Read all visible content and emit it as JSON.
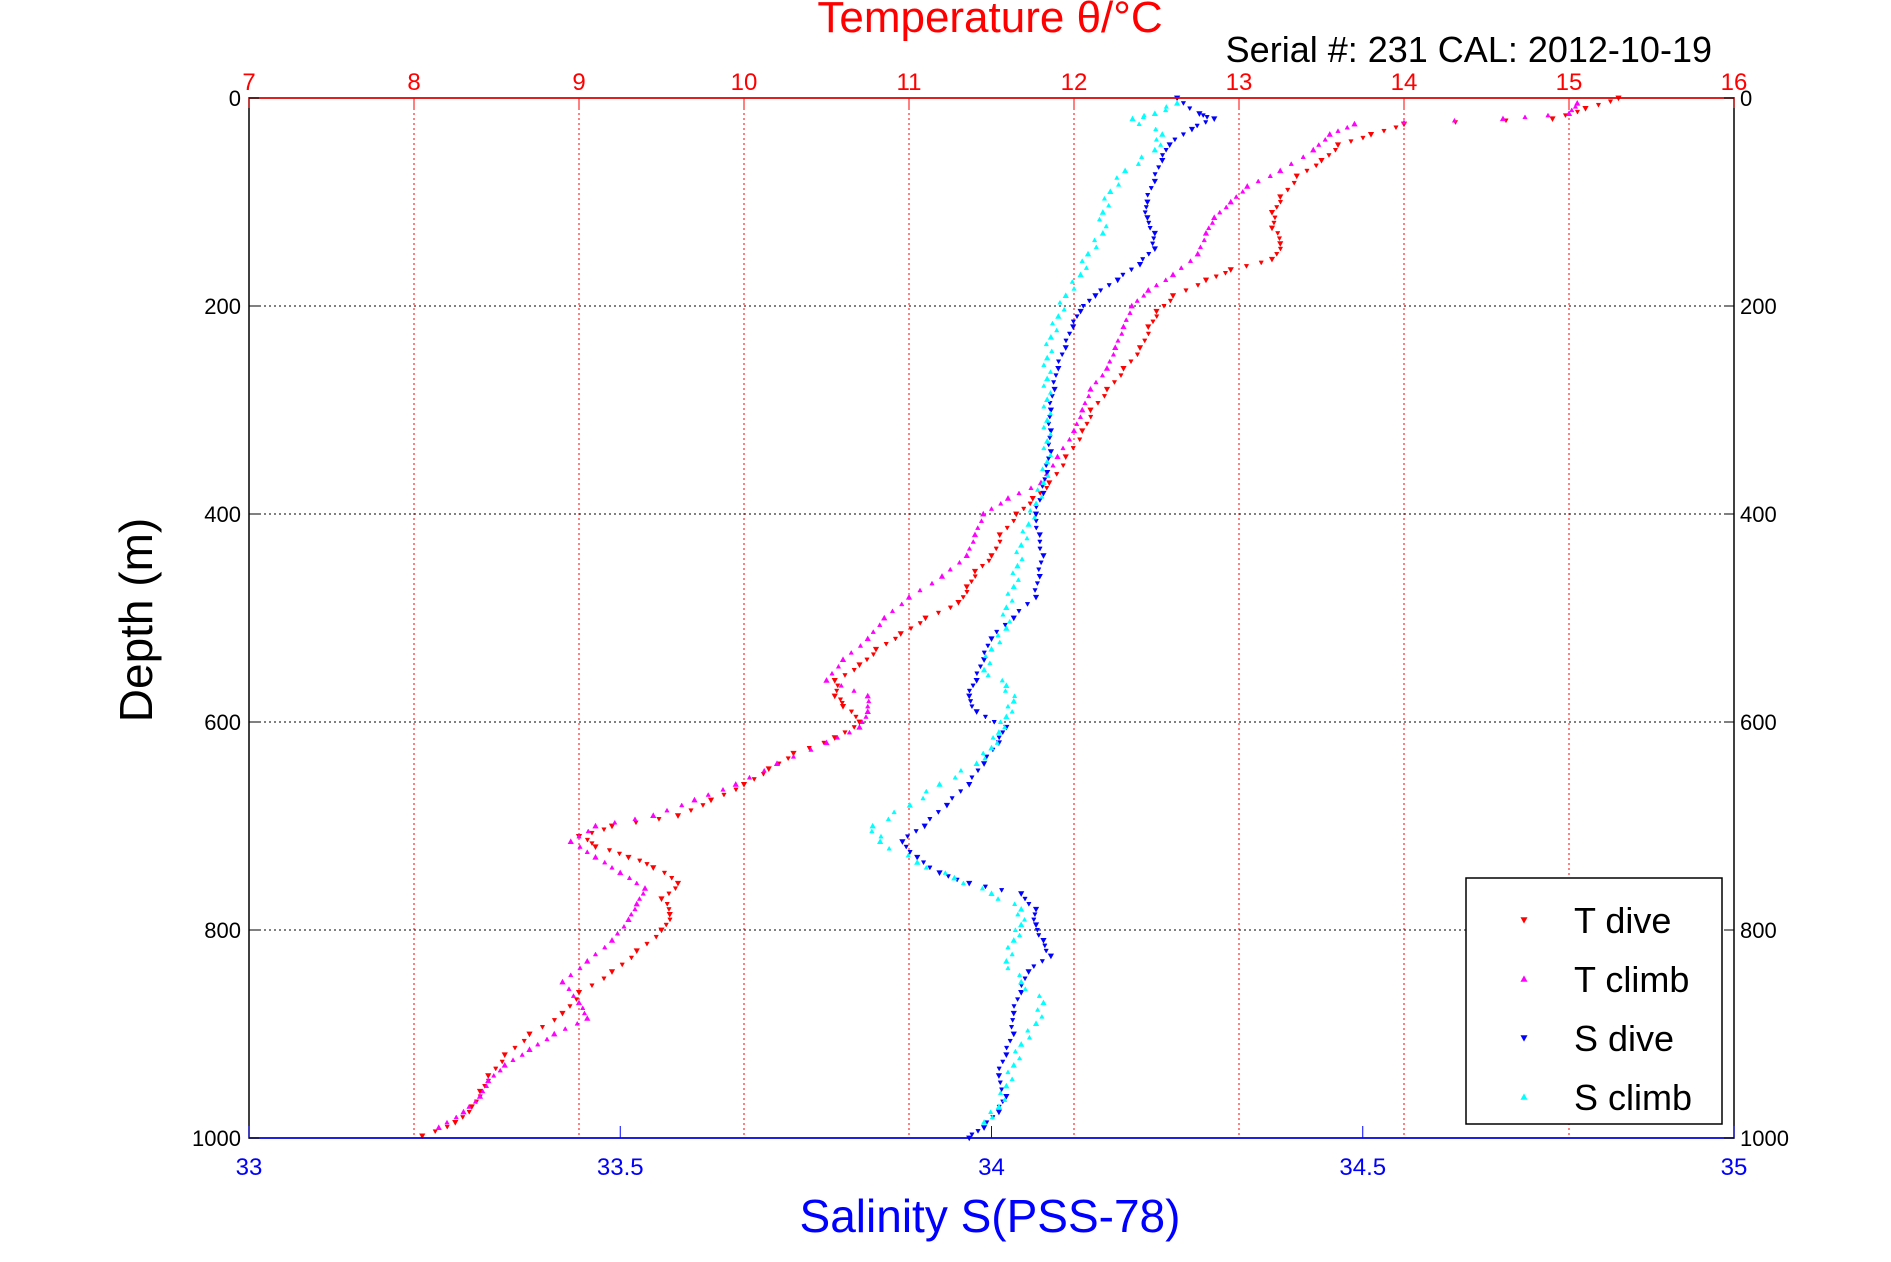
{
  "chart_data": {
    "type": "scatter",
    "title": "Temperature θ/°C",
    "subtitle": "Serial #: 231  CAL: 2012-10-19",
    "xlabel": "Salinity S(PSS-78)",
    "x2label": "Temperature θ/°C",
    "ylabel": "Depth (m)",
    "xlim_salinity": [
      33,
      35
    ],
    "xlim_temperature": [
      7,
      16
    ],
    "ylim": [
      0,
      1000
    ],
    "y_reversed": true,
    "grid_temperature": true,
    "grid_depth": true,
    "legend_position": "lower-right",
    "temperature_ticks": [
      "7",
      "8",
      "9",
      "10",
      "11",
      "12",
      "13",
      "14",
      "15",
      "16"
    ],
    "salinity_ticks": [
      "33",
      "33.5",
      "34",
      "34.5",
      "35"
    ],
    "depth_ticks": [
      "0",
      "200",
      "400",
      "600",
      "800",
      "1000"
    ],
    "series": [
      {
        "name": "T dive",
        "color": "#ff0000",
        "marker": "triangle-down",
        "axis": "temperature",
        "points": [
          [
            15.3,
            0
          ],
          [
            15.1,
            10
          ],
          [
            14.9,
            20
          ],
          [
            14.0,
            25
          ],
          [
            13.8,
            35
          ],
          [
            13.6,
            45
          ],
          [
            13.5,
            60
          ],
          [
            13.35,
            75
          ],
          [
            13.25,
            95
          ],
          [
            13.2,
            110
          ],
          [
            13.2,
            125
          ],
          [
            13.25,
            140
          ],
          [
            13.2,
            155
          ],
          [
            12.95,
            165
          ],
          [
            12.8,
            175
          ],
          [
            12.6,
            190
          ],
          [
            12.5,
            205
          ],
          [
            12.45,
            220
          ],
          [
            12.4,
            240
          ],
          [
            12.3,
            260
          ],
          [
            12.2,
            280
          ],
          [
            12.1,
            300
          ],
          [
            12.05,
            320
          ],
          [
            11.95,
            345
          ],
          [
            11.85,
            370
          ],
          [
            11.75,
            385
          ],
          [
            11.65,
            400
          ],
          [
            11.55,
            420
          ],
          [
            11.5,
            440
          ],
          [
            11.4,
            455
          ],
          [
            11.35,
            470
          ],
          [
            11.3,
            485
          ],
          [
            11.1,
            500
          ],
          [
            10.95,
            515
          ],
          [
            10.8,
            530
          ],
          [
            10.7,
            545
          ],
          [
            10.55,
            560
          ],
          [
            10.55,
            575
          ],
          [
            10.6,
            585
          ],
          [
            10.7,
            600
          ],
          [
            10.55,
            615
          ],
          [
            10.3,
            630
          ],
          [
            10.15,
            645
          ],
          [
            10.0,
            660
          ],
          [
            9.8,
            675
          ],
          [
            9.6,
            690
          ],
          [
            9.2,
            700
          ],
          [
            9.0,
            710
          ],
          [
            9.1,
            720
          ],
          [
            9.3,
            730
          ],
          [
            9.45,
            740
          ],
          [
            9.6,
            755
          ],
          [
            9.5,
            770
          ],
          [
            9.55,
            785
          ],
          [
            9.5,
            800
          ],
          [
            9.35,
            820
          ],
          [
            9.2,
            840
          ],
          [
            9.0,
            860
          ],
          [
            8.9,
            880
          ],
          [
            8.7,
            900
          ],
          [
            8.55,
            920
          ],
          [
            8.45,
            940
          ],
          [
            8.4,
            955
          ],
          [
            8.35,
            970
          ],
          [
            8.25,
            985
          ],
          [
            8.05,
            998
          ]
        ]
      },
      {
        "name": "T climb",
        "color": "#ff00ff",
        "marker": "triangle-up",
        "axis": "temperature",
        "points": [
          [
            15.05,
            5
          ],
          [
            15.0,
            15
          ],
          [
            14.6,
            20
          ],
          [
            13.7,
            25
          ],
          [
            13.55,
            35
          ],
          [
            13.45,
            50
          ],
          [
            13.25,
            70
          ],
          [
            13.05,
            85
          ],
          [
            12.95,
            100
          ],
          [
            12.85,
            115
          ],
          [
            12.8,
            130
          ],
          [
            12.75,
            150
          ],
          [
            12.6,
            170
          ],
          [
            12.45,
            185
          ],
          [
            12.35,
            200
          ],
          [
            12.3,
            220
          ],
          [
            12.25,
            240
          ],
          [
            12.2,
            260
          ],
          [
            12.1,
            280
          ],
          [
            12.05,
            300
          ],
          [
            12.0,
            320
          ],
          [
            11.9,
            345
          ],
          [
            11.8,
            370
          ],
          [
            11.6,
            385
          ],
          [
            11.45,
            400
          ],
          [
            11.4,
            420
          ],
          [
            11.35,
            440
          ],
          [
            11.2,
            460
          ],
          [
            11.0,
            480
          ],
          [
            10.85,
            500
          ],
          [
            10.75,
            520
          ],
          [
            10.6,
            540
          ],
          [
            10.5,
            560
          ],
          [
            10.75,
            575
          ],
          [
            10.75,
            590
          ],
          [
            10.7,
            605
          ],
          [
            10.5,
            620
          ],
          [
            10.2,
            640
          ],
          [
            9.95,
            660
          ],
          [
            9.7,
            675
          ],
          [
            9.45,
            690
          ],
          [
            9.1,
            700
          ],
          [
            8.95,
            715
          ],
          [
            9.1,
            730
          ],
          [
            9.25,
            745
          ],
          [
            9.4,
            760
          ],
          [
            9.35,
            775
          ],
          [
            9.3,
            790
          ],
          [
            9.2,
            810
          ],
          [
            9.05,
            830
          ],
          [
            8.9,
            850
          ],
          [
            9.0,
            870
          ],
          [
            9.05,
            885
          ],
          [
            8.85,
            900
          ],
          [
            8.7,
            915
          ],
          [
            8.55,
            930
          ],
          [
            8.45,
            945
          ],
          [
            8.4,
            960
          ],
          [
            8.3,
            975
          ],
          [
            8.15,
            990
          ]
        ]
      },
      {
        "name": "S dive",
        "color": "#0000ff",
        "marker": "triangle-down",
        "axis": "salinity",
        "points": [
          [
            34.25,
            0
          ],
          [
            34.28,
            15
          ],
          [
            34.3,
            20
          ],
          [
            34.27,
            30
          ],
          [
            34.24,
            45
          ],
          [
            34.23,
            60
          ],
          [
            34.22,
            80
          ],
          [
            34.21,
            100
          ],
          [
            34.21,
            115
          ],
          [
            34.22,
            130
          ],
          [
            34.22,
            145
          ],
          [
            34.2,
            160
          ],
          [
            34.17,
            175
          ],
          [
            34.14,
            190
          ],
          [
            34.12,
            205
          ],
          [
            34.11,
            220
          ],
          [
            34.1,
            240
          ],
          [
            34.09,
            260
          ],
          [
            34.085,
            280
          ],
          [
            34.08,
            300
          ],
          [
            34.08,
            320
          ],
          [
            34.08,
            340
          ],
          [
            34.075,
            360
          ],
          [
            34.07,
            380
          ],
          [
            34.06,
            400
          ],
          [
            34.065,
            420
          ],
          [
            34.07,
            440
          ],
          [
            34.065,
            460
          ],
          [
            34.06,
            480
          ],
          [
            34.03,
            500
          ],
          [
            34.0,
            520
          ],
          [
            33.99,
            540
          ],
          [
            33.98,
            560
          ],
          [
            33.97,
            575
          ],
          [
            33.98,
            590
          ],
          [
            34.02,
            605
          ],
          [
            34.01,
            620
          ],
          [
            33.99,
            640
          ],
          [
            33.97,
            660
          ],
          [
            33.94,
            680
          ],
          [
            33.91,
            700
          ],
          [
            33.88,
            715
          ],
          [
            33.9,
            730
          ],
          [
            33.93,
            745
          ],
          [
            33.97,
            755
          ],
          [
            34.04,
            765
          ],
          [
            34.06,
            780
          ],
          [
            34.06,
            795
          ],
          [
            34.07,
            810
          ],
          [
            34.08,
            825
          ],
          [
            34.05,
            840
          ],
          [
            34.04,
            860
          ],
          [
            34.03,
            880
          ],
          [
            34.03,
            900
          ],
          [
            34.02,
            920
          ],
          [
            34.01,
            940
          ],
          [
            34.02,
            960
          ],
          [
            34.01,
            975
          ],
          [
            33.99,
            990
          ],
          [
            33.97,
            1000
          ]
        ]
      },
      {
        "name": "S climb",
        "color": "#00ffff",
        "marker": "triangle-up",
        "axis": "salinity",
        "points": [
          [
            34.25,
            5
          ],
          [
            34.22,
            15
          ],
          [
            34.19,
            20
          ],
          [
            34.23,
            35
          ],
          [
            34.22,
            50
          ],
          [
            34.18,
            70
          ],
          [
            34.16,
            90
          ],
          [
            34.15,
            110
          ],
          [
            34.15,
            130
          ],
          [
            34.13,
            150
          ],
          [
            34.12,
            170
          ],
          [
            34.1,
            190
          ],
          [
            34.09,
            210
          ],
          [
            34.08,
            230
          ],
          [
            34.075,
            250
          ],
          [
            34.075,
            270
          ],
          [
            34.075,
            290
          ],
          [
            34.075,
            310
          ],
          [
            34.075,
            330
          ],
          [
            34.075,
            350
          ],
          [
            34.07,
            370
          ],
          [
            34.06,
            390
          ],
          [
            34.05,
            410
          ],
          [
            34.04,
            430
          ],
          [
            34.035,
            450
          ],
          [
            34.03,
            470
          ],
          [
            34.02,
            490
          ],
          [
            34.02,
            510
          ],
          [
            34.0,
            530
          ],
          [
            33.99,
            550
          ],
          [
            34.02,
            565
          ],
          [
            34.03,
            580
          ],
          [
            34.02,
            595
          ],
          [
            34.01,
            610
          ],
          [
            34.0,
            625
          ],
          [
            33.98,
            640
          ],
          [
            33.93,
            660
          ],
          [
            33.89,
            680
          ],
          [
            33.84,
            700
          ],
          [
            33.85,
            715
          ],
          [
            33.9,
            735
          ],
          [
            33.95,
            750
          ],
          [
            34.0,
            765
          ],
          [
            34.04,
            780
          ],
          [
            34.04,
            795
          ],
          [
            34.03,
            810
          ],
          [
            34.02,
            830
          ],
          [
            34.04,
            850
          ],
          [
            34.07,
            870
          ],
          [
            34.06,
            890
          ],
          [
            34.04,
            910
          ],
          [
            34.03,
            930
          ],
          [
            34.02,
            950
          ],
          [
            34.01,
            970
          ],
          [
            33.99,
            985
          ]
        ]
      }
    ]
  }
}
